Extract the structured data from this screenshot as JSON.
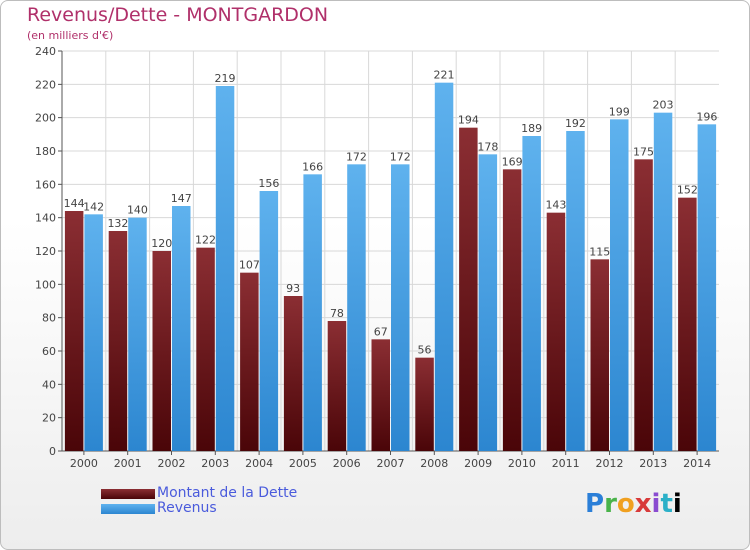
{
  "title": "Revenus/Dette - MONTGARDON",
  "subtitle": "(en milliers d'€)",
  "legend": {
    "debt_label": "Montant de la Dette",
    "revenue_label": "Revenus"
  },
  "logo_text": "Proxiti",
  "colors": {
    "debt_top": "#8b2e33",
    "debt_bottom": "#4a0508",
    "revenue_top": "#5fb2ee",
    "revenue_bottom": "#2c86d0",
    "title": "#b0306a",
    "legend_text": "#4a5bdc"
  },
  "chart_data": {
    "type": "bar",
    "title": "Revenus/Dette - MONTGARDON",
    "subtitle": "(en milliers d'€)",
    "categories": [
      "2000",
      "2001",
      "2002",
      "2003",
      "2004",
      "2005",
      "2006",
      "2007",
      "2008",
      "2009",
      "2010",
      "2011",
      "2012",
      "2013",
      "2014"
    ],
    "series": [
      {
        "name": "Montant de la Dette",
        "values": [
          144,
          132,
          120,
          122,
          107,
          93,
          78,
          67,
          56,
          194,
          169,
          143,
          115,
          175,
          152
        ]
      },
      {
        "name": "Revenus",
        "values": [
          142,
          140,
          147,
          219,
          156,
          166,
          172,
          172,
          221,
          178,
          189,
          192,
          199,
          203,
          196
        ]
      }
    ],
    "ylim": [
      0,
      240
    ],
    "yticks": [
      0,
      20,
      40,
      60,
      80,
      100,
      120,
      140,
      160,
      180,
      200,
      220,
      240
    ],
    "grid": true,
    "legend_position": "bottom-left"
  }
}
